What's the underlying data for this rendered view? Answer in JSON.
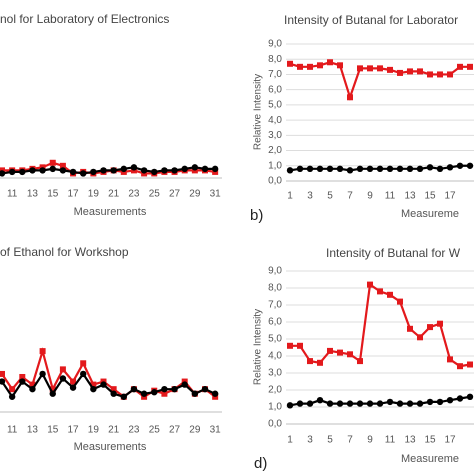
{
  "chart_data": [
    {
      "type": "line",
      "title": "nol for Laboratory of Electronics",
      "x_label": "Measurements",
      "categories": [
        null,
        "11",
        null,
        "13",
        null,
        "15",
        null,
        "17",
        null,
        "19",
        null,
        "21",
        null,
        "23",
        null,
        "25",
        null,
        "27",
        null,
        "29",
        null,
        "31"
      ],
      "ylim": [
        0,
        9
      ],
      "series": [
        {
          "color": "#e3191c",
          "marker": "square",
          "values": [
            0.5,
            0.5,
            0.5,
            0.6,
            0.7,
            1.0,
            0.8,
            0.3,
            0.4,
            0.3,
            0.4,
            0.5,
            0.4,
            0.5,
            0.3,
            0.3,
            0.4,
            0.4,
            0.5,
            0.5,
            0.5,
            0.4
          ]
        },
        {
          "color": "#000000",
          "marker": "circle",
          "values": [
            0.3,
            0.4,
            0.4,
            0.5,
            0.5,
            0.6,
            0.5,
            0.4,
            0.3,
            0.4,
            0.5,
            0.5,
            0.6,
            0.7,
            0.5,
            0.4,
            0.5,
            0.5,
            0.6,
            0.7,
            0.6,
            0.6
          ]
        }
      ]
    },
    {
      "type": "line",
      "title": "Intensity of Butanal for Laborator",
      "x_label": "Measureme",
      "y_label": "Relative Intensity",
      "categories": [
        "1",
        null,
        "3",
        null,
        "5",
        null,
        "7",
        null,
        "9",
        null,
        "11",
        null,
        "13",
        null,
        "15",
        null,
        "17",
        null,
        null
      ],
      "ylim": [
        0,
        9
      ],
      "yticks": [
        {
          "value": 0,
          "label": "0,0"
        },
        {
          "value": 1,
          "label": "1,0"
        },
        {
          "value": 2,
          "label": "2,0"
        },
        {
          "value": 3,
          "label": "3,0"
        },
        {
          "value": 4,
          "label": "4,0"
        },
        {
          "value": 5,
          "label": "5,0"
        },
        {
          "value": 6,
          "label": "6,0"
        },
        {
          "value": 7,
          "label": "7,0"
        },
        {
          "value": 8,
          "label": "8,0"
        },
        {
          "value": 9,
          "label": "9,0"
        }
      ],
      "grid": true,
      "series": [
        {
          "color": "#e3191c",
          "marker": "square",
          "values": [
            7.7,
            7.5,
            7.5,
            7.6,
            7.8,
            7.6,
            5.5,
            7.4,
            7.4,
            7.4,
            7.3,
            7.1,
            7.2,
            7.2,
            7.0,
            7.0,
            7.0,
            7.5,
            7.5
          ]
        },
        {
          "color": "#000000",
          "marker": "circle",
          "values": [
            0.7,
            0.8,
            0.8,
            0.8,
            0.8,
            0.8,
            0.7,
            0.8,
            0.8,
            0.8,
            0.8,
            0.8,
            0.8,
            0.8,
            0.9,
            0.8,
            0.9,
            1.0,
            1.0
          ]
        }
      ]
    },
    {
      "type": "line",
      "title": "of Ethanol for Workshop",
      "x_label": "Measurements",
      "categories": [
        null,
        "11",
        null,
        "13",
        null,
        "15",
        null,
        "17",
        null,
        "19",
        null,
        "21",
        null,
        "23",
        null,
        "25",
        null,
        "27",
        null,
        "29",
        null,
        "31"
      ],
      "ylim": [
        0,
        9
      ],
      "series": [
        {
          "color": "#e3191c",
          "marker": "square",
          "values": [
            2.5,
            1.5,
            2.3,
            1.8,
            4.0,
            1.5,
            2.8,
            2.0,
            3.2,
            1.8,
            2.0,
            1.5,
            1.0,
            1.5,
            1.0,
            1.4,
            1.2,
            1.5,
            2.0,
            1.2,
            1.5,
            1.0
          ]
        },
        {
          "color": "#000000",
          "marker": "circle",
          "values": [
            2.0,
            1.0,
            2.0,
            1.5,
            2.5,
            1.2,
            2.2,
            1.6,
            2.5,
            1.5,
            1.8,
            1.2,
            1.0,
            1.5,
            1.2,
            1.3,
            1.5,
            1.5,
            1.8,
            1.2,
            1.5,
            1.2
          ]
        }
      ]
    },
    {
      "type": "line",
      "title": "Intensity of Butanal for W",
      "x_label": "Measureme",
      "y_label": "Relative Intensity",
      "categories": [
        "1",
        null,
        "3",
        null,
        "5",
        null,
        "7",
        null,
        "9",
        null,
        "11",
        null,
        "13",
        null,
        "15",
        null,
        "17",
        null,
        null
      ],
      "ylim": [
        0,
        9
      ],
      "yticks": [
        {
          "value": 0,
          "label": "0,0"
        },
        {
          "value": 1,
          "label": "1,0"
        },
        {
          "value": 2,
          "label": "2,0"
        },
        {
          "value": 3,
          "label": "3,0"
        },
        {
          "value": 4,
          "label": "4,0"
        },
        {
          "value": 5,
          "label": "5,0"
        },
        {
          "value": 6,
          "label": "6,0"
        },
        {
          "value": 7,
          "label": "7,0"
        },
        {
          "value": 8,
          "label": "8,0"
        },
        {
          "value": 9,
          "label": "9,0"
        }
      ],
      "grid": true,
      "series": [
        {
          "color": "#e3191c",
          "marker": "square",
          "values": [
            4.6,
            4.6,
            3.7,
            3.6,
            4.3,
            4.2,
            4.1,
            3.7,
            8.2,
            7.8,
            7.6,
            7.2,
            5.6,
            5.1,
            5.7,
            5.9,
            3.8,
            3.4,
            3.5
          ]
        },
        {
          "color": "#000000",
          "marker": "circle",
          "values": [
            1.1,
            1.2,
            1.2,
            1.4,
            1.2,
            1.2,
            1.2,
            1.2,
            1.2,
            1.2,
            1.3,
            1.2,
            1.2,
            1.2,
            1.3,
            1.3,
            1.4,
            1.5,
            1.6
          ]
        }
      ]
    }
  ],
  "panel_labels": [
    "b)",
    "d)"
  ]
}
